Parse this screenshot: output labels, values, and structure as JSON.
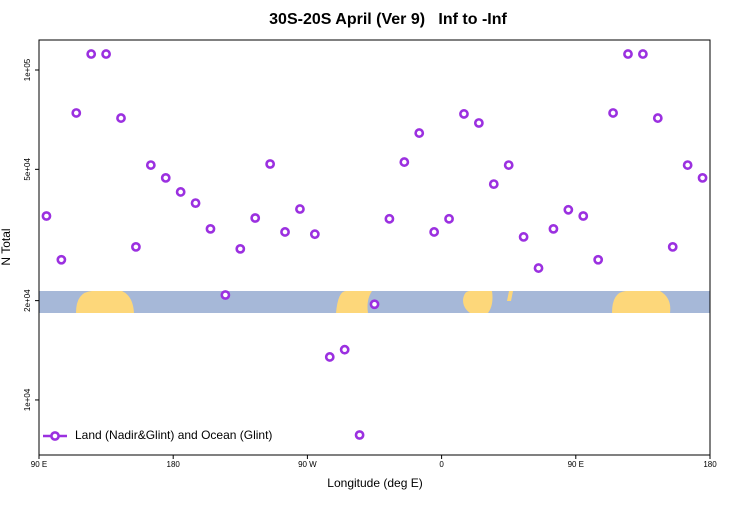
{
  "chart_data": {
    "type": "scatter",
    "title": "30S-20S April (Ver 9)   Inf to -Inf",
    "x_label": "Longitude (deg E)",
    "y_label": "N Total",
    "log_y": true,
    "legend_position": "bottom-left",
    "xlim": [
      90,
      540
    ],
    "xticks": [
      {
        "value": 90,
        "label": "90 E"
      },
      180,
      {
        "value": 270,
        "label": "90 W"
      },
      {
        "value": 360,
        "label": "0"
      },
      {
        "value": 450,
        "label": "90 E"
      },
      {
        "value": 540,
        "label": "180"
      }
    ],
    "ylim": [
      6810,
      123300
    ],
    "yticks": [
      {
        "value": 10000,
        "label": "1e+04"
      },
      {
        "value": 20000,
        "label": "2e+04"
      },
      {
        "value": 50000,
        "label": "5e+04"
      },
      {
        "value": 100000,
        "label": "1e+05"
      }
    ],
    "series": [
      {
        "name": "Land (Nadir&Glint) and Ocean (Glint)",
        "color": "#9b30e0",
        "x": [
          95,
          105,
          115,
          125,
          135,
          145,
          155,
          165,
          175,
          185,
          195,
          205,
          215,
          225,
          235,
          245,
          255,
          265,
          275,
          285,
          295,
          305,
          315,
          325,
          335,
          345,
          355,
          365,
          375,
          385,
          395,
          405,
          415,
          425,
          435,
          445,
          455,
          465,
          475,
          485,
          495,
          505,
          515,
          525,
          535
        ],
        "values": [
          36100,
          26600,
          74100,
          111800,
          111800,
          71500,
          29100,
          51500,
          47100,
          42700,
          39500,
          33000,
          20800,
          28700,
          35600,
          51900,
          32300,
          37900,
          31800,
          13500,
          14200,
          7830,
          19500,
          35400,
          52600,
          64400,
          32300,
          35400,
          73600,
          69100,
          45100,
          51500,
          31200,
          25100,
          33000,
          37700,
          36100,
          26600,
          74100,
          111800,
          111800,
          71500,
          29100,
          51500,
          47100
        ]
      }
    ]
  }
}
